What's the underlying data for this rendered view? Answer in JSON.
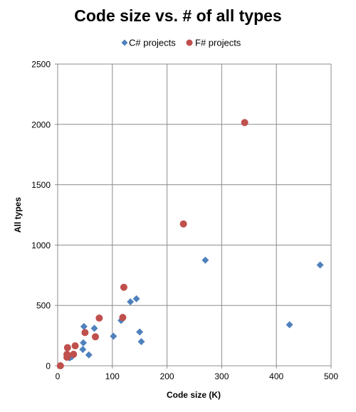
{
  "chart_data": {
    "type": "scatter",
    "title": "Code size vs. # of all types",
    "xlabel": "Code size (K)",
    "ylabel": "All types",
    "xlim": [
      0,
      500
    ],
    "ylim": [
      0,
      2500
    ],
    "x_ticks": [
      "0",
      "100",
      "200",
      "300",
      "400",
      "500"
    ],
    "y_ticks": [
      "0",
      "500",
      "1000",
      "1500",
      "2000",
      "2500"
    ],
    "grid": true,
    "legend_position": "top",
    "series": [
      {
        "name": "C# projects",
        "marker": "diamond",
        "color": "#4f81bd",
        "points": [
          [
            22,
            65
          ],
          [
            26,
            75
          ],
          [
            46,
            135
          ],
          [
            47,
            190
          ],
          [
            48,
            325
          ],
          [
            57,
            90
          ],
          [
            67,
            310
          ],
          [
            102,
            245
          ],
          [
            116,
            375
          ],
          [
            133,
            530
          ],
          [
            144,
            555
          ],
          [
            150,
            280
          ],
          [
            153,
            200
          ],
          [
            270,
            875
          ],
          [
            424,
            340
          ],
          [
            480,
            835
          ]
        ]
      },
      {
        "name": "F# projects",
        "marker": "circle",
        "color": "#c0504d",
        "points": [
          [
            5,
            0
          ],
          [
            17,
            70
          ],
          [
            17,
            95
          ],
          [
            18,
            150
          ],
          [
            29,
            95
          ],
          [
            32,
            165
          ],
          [
            50,
            275
          ],
          [
            69,
            240
          ],
          [
            76,
            395
          ],
          [
            119,
            400
          ],
          [
            121,
            650
          ],
          [
            230,
            1175
          ],
          [
            342,
            2015
          ]
        ]
      }
    ]
  }
}
